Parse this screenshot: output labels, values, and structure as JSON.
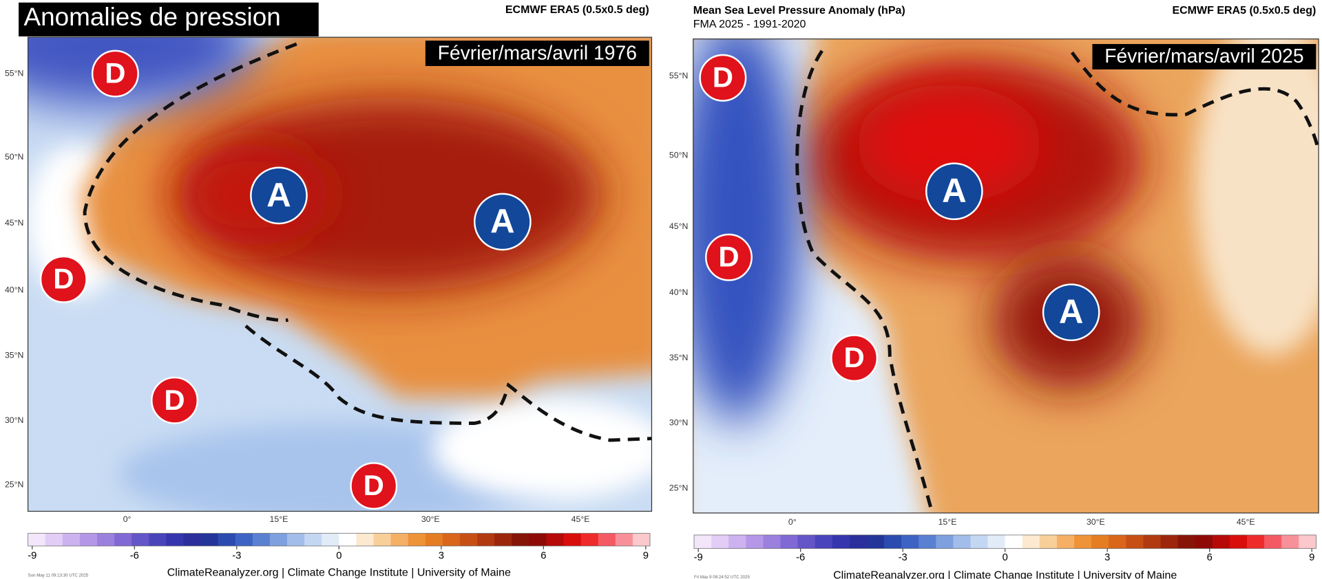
{
  "panels": [
    {
      "title": "Anomalies de pression",
      "source": "ECMWF ERA5 (0.5x0.5 deg)",
      "period_label": "Février/mars/avril 1976",
      "lat_labels": [
        "55°N",
        "50°N",
        "45°N",
        "40°N",
        "35°N",
        "30°N",
        "25°N"
      ],
      "lon_labels": [
        "0°",
        "15°E",
        "30°E",
        "45°E"
      ],
      "markers": [
        {
          "label": "D"
        },
        {
          "label": "D"
        },
        {
          "label": "D"
        },
        {
          "label": "D"
        },
        {
          "label": "A"
        },
        {
          "label": "A"
        }
      ],
      "colorbar": {
        "range": [
          -9,
          9
        ],
        "ticks": [
          -9,
          -6,
          -3,
          0,
          3,
          6,
          9
        ]
      },
      "timestamp": "Sun May 11 09:13:30 UTC 2025",
      "credit": "ClimateReanalyzer.org | Climate Change Institute | University of Maine"
    },
    {
      "title": "Mean Sea Level Pressure Anomaly (hPa)",
      "subtitle": "FMA 2025 - 1991-2020",
      "source": "ECMWF ERA5 (0.5x0.5 deg)",
      "period_label": "Février/mars/avril 2025",
      "lat_labels": [
        "55°N",
        "50°N",
        "45°N",
        "40°N",
        "35°N",
        "30°N",
        "25°N"
      ],
      "lon_labels": [
        "0°",
        "15°E",
        "30°E",
        "45°E"
      ],
      "markers": [
        {
          "label": "D"
        },
        {
          "label": "D"
        },
        {
          "label": "D"
        },
        {
          "label": "A"
        },
        {
          "label": "A"
        }
      ],
      "colorbar": {
        "range": [
          -9,
          9
        ],
        "ticks": [
          -9,
          -6,
          -3,
          0,
          3,
          6,
          9
        ]
      },
      "timestamp": "Fri May 9 08:24:52 UTC 2025",
      "credit": "ClimateReanalyzer.org | Climate Change Institute | University of Maine"
    }
  ],
  "colorbar_colors": [
    "#f3e6fb",
    "#e2cdf6",
    "#cdb2f0",
    "#b597e8",
    "#9c80de",
    "#8069d4",
    "#6455c8",
    "#4a44bb",
    "#3536ad",
    "#2a2f9c",
    "#24359a",
    "#2c4bb0",
    "#3d63c4",
    "#5a80d2",
    "#7ea0de",
    "#a2bde9",
    "#c4d7f2",
    "#e2ecf9",
    "#ffffff",
    "#fde9cf",
    "#f9cf99",
    "#f5b066",
    "#ef9338",
    "#e57d22",
    "#d9661a",
    "#c84f14",
    "#b23a10",
    "#9c260b",
    "#861508",
    "#8e0a06",
    "#b50a08",
    "#d80e0c",
    "#ee2a2a",
    "#f45a63",
    "#f8909a",
    "#fbc8cc"
  ]
}
